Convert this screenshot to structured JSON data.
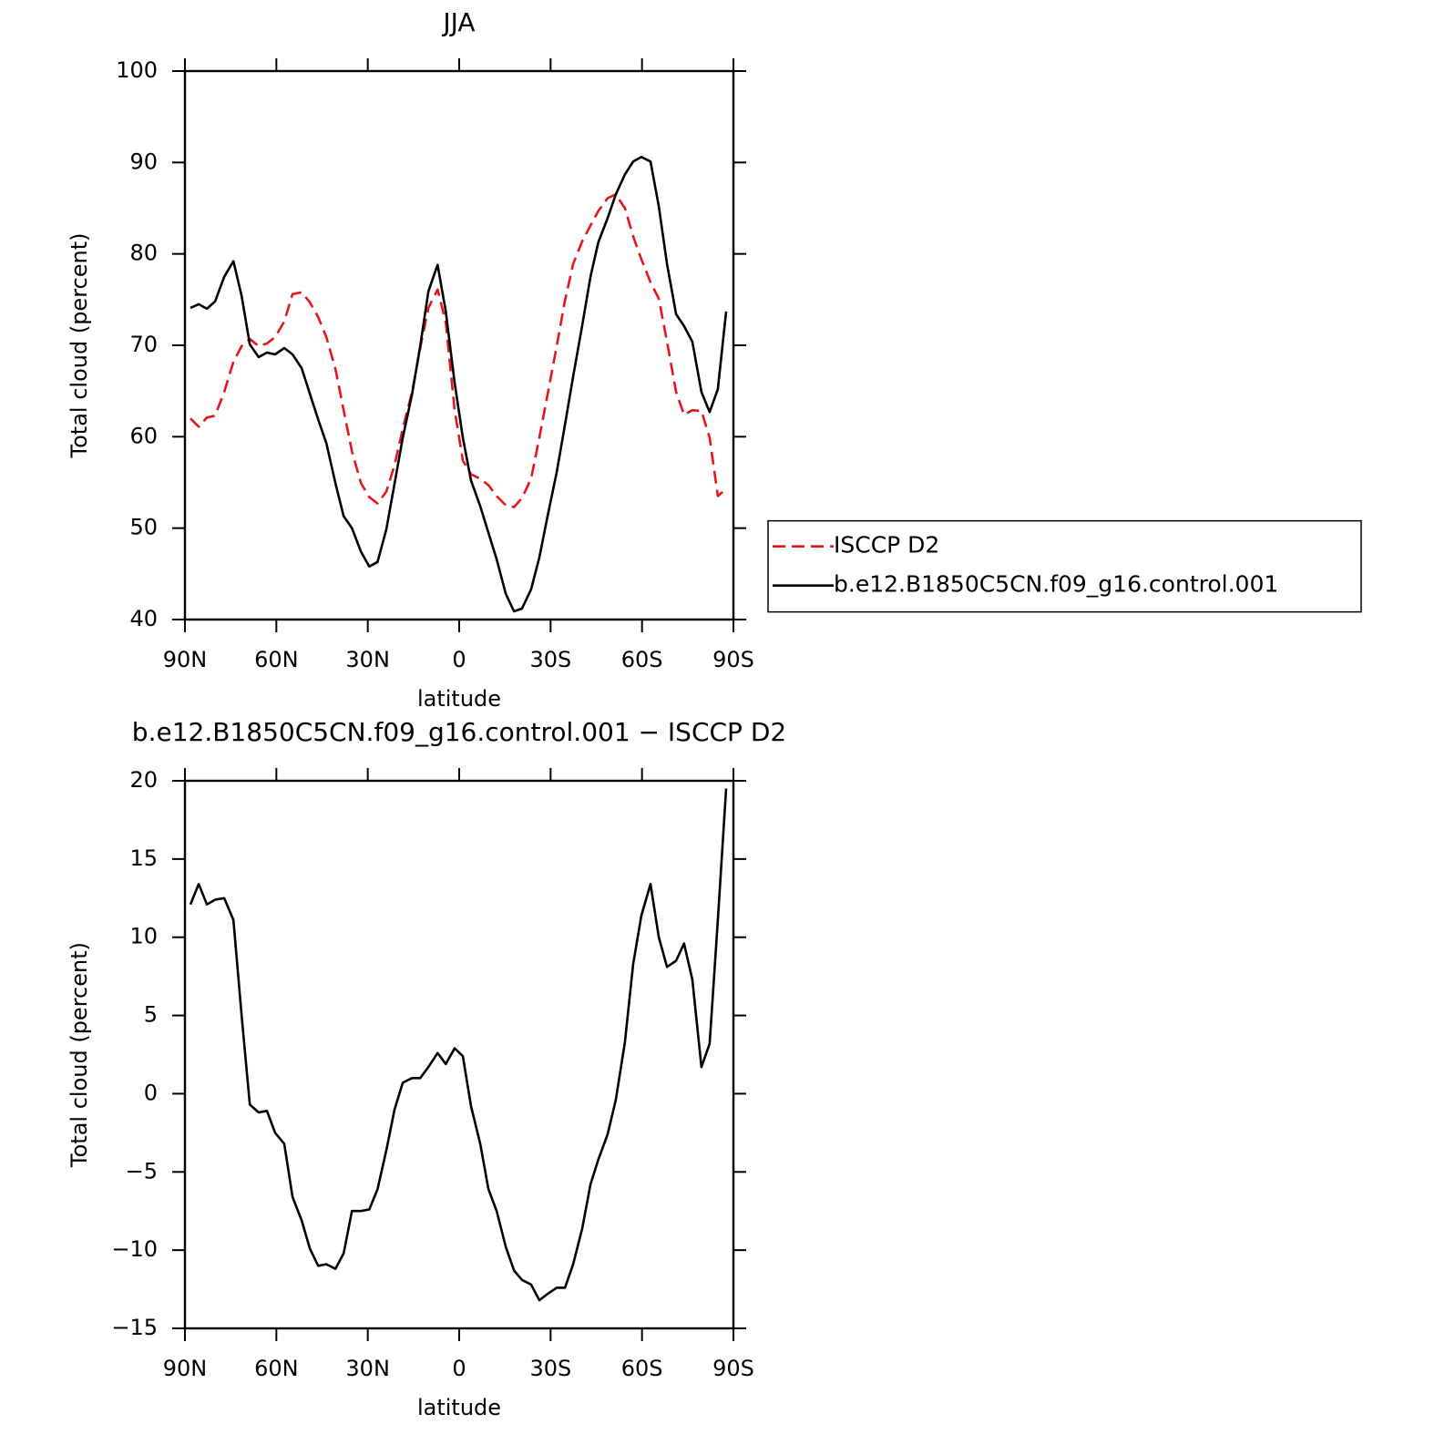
{
  "chart_data": [
    {
      "type": "line",
      "title": "JJA",
      "x_label": "latitude",
      "y_label": "Total cloud (percent)",
      "x": [
        88.2,
        85.5,
        82.8,
        80.1,
        77.1,
        74.1,
        71.4,
        68.7,
        65.8,
        63.1,
        60.4,
        57.4,
        54.7,
        51.7,
        49.0,
        46.3,
        43.6,
        40.6,
        37.9,
        35.2,
        32.2,
        29.5,
        26.8,
        23.9,
        21.2,
        18.5,
        15.5,
        12.8,
        10.1,
        7.1,
        4.4,
        1.5,
        -1.2,
        -3.9,
        -6.9,
        -9.6,
        -12.3,
        -15.3,
        -18.0,
        -20.6,
        -23.6,
        -26.3,
        -29.0,
        -32.0,
        -34.7,
        -37.4,
        -40.4,
        -43.1,
        -45.7,
        -48.7,
        -51.4,
        -54.4,
        -57.1,
        -59.8,
        -62.8,
        -65.5,
        -68.2,
        -71.2,
        -73.8,
        -76.5,
        -79.5,
        -82.2,
        -84.9,
        -87.6
      ],
      "series": [
        {
          "name": "ISCCP D2",
          "color": "#e8141c",
          "line_style": "dashed",
          "values": [
            62.0,
            61.1,
            62.1,
            62.3,
            64.9,
            68.2,
            69.9,
            70.7,
            69.9,
            70.2,
            70.9,
            72.6,
            75.6,
            75.8,
            74.7,
            73.1,
            70.9,
            67.4,
            62.9,
            58.4,
            54.9,
            53.4,
            52.7,
            54.0,
            56.9,
            60.9,
            64.9,
            69.7,
            74.1,
            76.1,
            72.5,
            62.9,
            57.4,
            55.9,
            55.4,
            54.7,
            53.5,
            52.5,
            52.3,
            53.3,
            55.4,
            59.9,
            64.6,
            69.9,
            74.9,
            78.9,
            81.4,
            83.1,
            84.7,
            86.1,
            86.5,
            85.0,
            81.9,
            79.4,
            76.9,
            75.1,
            70.4,
            64.9,
            62.4,
            62.9,
            62.8,
            59.9,
            53.5,
            54.3
          ]
        },
        {
          "name": "b.e12.B1850C5CN.f09_g16.control.001",
          "color": "#000000",
          "line_style": "solid",
          "values": [
            74.1,
            74.5,
            74.0,
            74.8,
            77.5,
            79.2,
            75.4,
            70.1,
            68.7,
            69.2,
            69.0,
            69.7,
            69.0,
            67.5,
            64.7,
            61.9,
            59.3,
            54.9,
            51.3,
            50.0,
            47.4,
            45.8,
            46.3,
            49.9,
            54.9,
            59.9,
            64.6,
            69.9,
            75.9,
            78.8,
            73.7,
            65.9,
            59.9,
            55.2,
            52.4,
            49.5,
            46.6,
            42.8,
            40.9,
            41.2,
            43.3,
            46.8,
            51.3,
            56.1,
            61.3,
            66.6,
            72.2,
            77.5,
            81.3,
            83.9,
            86.5,
            88.7,
            90.1,
            90.6,
            90.1,
            85.2,
            78.9,
            73.4,
            72.1,
            70.4,
            64.9,
            62.7,
            65.2,
            73.7
          ]
        }
      ],
      "xlim": [
        90,
        -90
      ],
      "xticks": [
        {
          "value": 90,
          "label": "90N"
        },
        {
          "value": 60,
          "label": "60N"
        },
        {
          "value": 30,
          "label": "30N"
        },
        0,
        {
          "value": -30,
          "label": "30S"
        },
        {
          "value": -60,
          "label": "60S"
        },
        {
          "value": -90,
          "label": "90S"
        }
      ],
      "ylim": [
        40,
        100
      ],
      "yticks": [
        40,
        50,
        60,
        70,
        80,
        90,
        100
      ],
      "legend": "right"
    },
    {
      "type": "line",
      "title": "b.e12.B1850C5CN.f09_g16.control.001 − ISCCP D2",
      "x_label": "latitude",
      "y_label": "Total cloud (percent)",
      "x": [
        88.2,
        85.5,
        82.8,
        80.1,
        77.1,
        74.1,
        71.4,
        68.7,
        65.8,
        63.1,
        60.4,
        57.4,
        54.7,
        51.7,
        49.0,
        46.3,
        43.6,
        40.6,
        37.9,
        35.2,
        32.2,
        29.5,
        26.8,
        23.9,
        21.2,
        18.5,
        15.5,
        12.8,
        10.1,
        7.1,
        4.4,
        1.5,
        -1.2,
        -3.9,
        -6.9,
        -9.6,
        -12.3,
        -15.3,
        -18.0,
        -20.6,
        -23.6,
        -26.3,
        -29.0,
        -32.0,
        -34.7,
        -37.4,
        -40.4,
        -43.1,
        -45.7,
        -48.7,
        -51.4,
        -54.4,
        -57.1,
        -59.8,
        -62.8,
        -65.5,
        -68.2,
        -71.2,
        -73.8,
        -76.5,
        -79.5,
        -82.2,
        -84.9,
        -87.6
      ],
      "color": "#000000",
      "values": [
        12.1,
        13.4,
        12.1,
        12.4,
        12.5,
        11.1,
        5.0,
        -0.7,
        -1.2,
        -1.1,
        -2.5,
        -3.2,
        -6.6,
        -8.1,
        -9.9,
        -11.0,
        -10.9,
        -11.2,
        -10.2,
        -7.5,
        -7.5,
        -7.4,
        -6.1,
        -3.6,
        -1.0,
        0.7,
        1.0,
        1.0,
        1.7,
        2.6,
        1.9,
        2.9,
        2.4,
        -0.8,
        -3.2,
        -6.1,
        -7.5,
        -9.8,
        -11.3,
        -11.9,
        -12.2,
        -13.2,
        -12.8,
        -12.4,
        -12.4,
        -10.9,
        -8.6,
        -5.8,
        -4.2,
        -2.6,
        -0.4,
        3.3,
        8.3,
        11.4,
        13.4,
        10.0,
        8.1,
        8.5,
        9.6,
        7.3,
        1.7,
        3.2,
        11.1,
        19.5
      ],
      "xlim": [
        90,
        -90
      ],
      "xticks": [
        {
          "value": 90,
          "label": "90N"
        },
        {
          "value": 60,
          "label": "60N"
        },
        {
          "value": 30,
          "label": "30N"
        },
        0,
        {
          "value": -30,
          "label": "30S"
        },
        {
          "value": -60,
          "label": "60S"
        },
        {
          "value": -90,
          "label": "90S"
        }
      ],
      "ylim": [
        -15,
        20
      ],
      "yticks": [
        {
          "value": -15,
          "label": "−15"
        },
        {
          "value": -10,
          "label": "−10"
        },
        {
          "value": -5,
          "label": "−5"
        },
        0,
        5,
        10,
        15,
        20
      ]
    }
  ]
}
